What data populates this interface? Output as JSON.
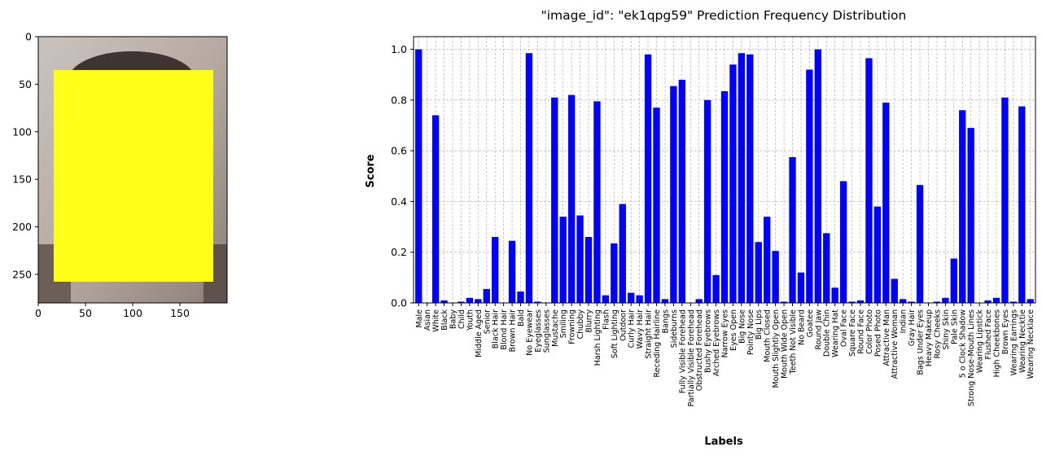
{
  "chart_data": [
    {
      "type": "image",
      "xlim": [
        0,
        200
      ],
      "ylim": [
        280,
        0
      ],
      "xticks": [
        "0",
        "50",
        "100",
        "150"
      ],
      "yticks": [
        "0",
        "50",
        "100",
        "150",
        "200",
        "250"
      ],
      "overlay_color": "#ffff1a",
      "overlay_label": "face-redaction-box"
    },
    {
      "type": "bar",
      "title": "\"image_id\": \"ek1qpg59\" Prediction Frequency Distribution",
      "xlabel": "Labels",
      "ylabel": "Score",
      "ylim": [
        0,
        1.05
      ],
      "yticks": [
        "0.0",
        "0.2",
        "0.4",
        "0.6",
        "0.8",
        "1.0"
      ],
      "grid": true,
      "bar_color": "#0000ff",
      "categories": [
        "Male",
        "Asian",
        "White",
        "Black",
        "Baby",
        "Child",
        "Youth",
        "Middle Aged",
        "Senior",
        "Black Hair",
        "Blond Hair",
        "Brown Hair",
        "Bald",
        "No Eyewear",
        "Eyeglasses",
        "Sunglasses",
        "Mustache",
        "Smiling",
        "Frowning",
        "Chubby",
        "Blurry",
        "Harsh Lighting",
        "Flash",
        "Soft Lighting",
        "Outdoor",
        "Curly Hair",
        "Wavy Hair",
        "Straight Hair",
        "Receding Hairline",
        "Bangs",
        "Sideburns",
        "Fully Visible Forehead",
        "Partially Visible Forehead",
        "Obstructed Forehead",
        "Bushy Eyebrows",
        "Arched Eyebrows",
        "Narrow Eyes",
        "Eyes Open",
        "Big Nose",
        "Pointy Nose",
        "Big Lips",
        "Mouth Closed",
        "Mouth Slightly Open",
        "Mouth Wide Open",
        "Teeth Not Visible",
        "No Beard",
        "Goatee",
        "Round Jaw",
        "Double Chin",
        "Wearing Hat",
        "Oval Face",
        "Square Face",
        "Round Face",
        "Color Photo",
        "Posed Photo",
        "Attractive Man",
        "Attractive Woman",
        "Indian",
        "Gray Hair",
        "Bags Under Eyes",
        "Heavy Makeup",
        "Rosy Cheeks",
        "Shiny Skin",
        "Pale Skin",
        "5 o Clock Shadow",
        "Strong Nose-Mouth Lines",
        "Wearing Lipstick",
        "Flushed Face",
        "High Cheekbones",
        "Brown Eyes",
        "Wearing Earrings",
        "Wearing Necktie",
        "Wearing Necklace"
      ],
      "values": [
        1.0,
        0.0,
        0.74,
        0.01,
        0.0,
        0.005,
        0.02,
        0.015,
        0.055,
        0.26,
        0.0,
        0.245,
        0.045,
        0.985,
        0.005,
        0.0,
        0.81,
        0.34,
        0.82,
        0.345,
        0.26,
        0.795,
        0.03,
        0.235,
        0.39,
        0.04,
        0.03,
        0.98,
        0.77,
        0.015,
        0.855,
        0.88,
        0.0,
        0.015,
        0.8,
        0.11,
        0.835,
        0.94,
        0.985,
        0.98,
        0.24,
        0.34,
        0.205,
        0.005,
        0.575,
        0.12,
        0.92,
        1.0,
        0.275,
        0.06,
        0.48,
        0.005,
        0.01,
        0.965,
        0.38,
        0.79,
        0.095,
        0.015,
        0.005,
        0.465,
        0.0,
        0.005,
        0.02,
        0.175,
        0.76,
        0.69,
        0.0,
        0.01,
        0.02,
        0.81,
        0.005,
        0.775,
        0.015
      ]
    }
  ]
}
